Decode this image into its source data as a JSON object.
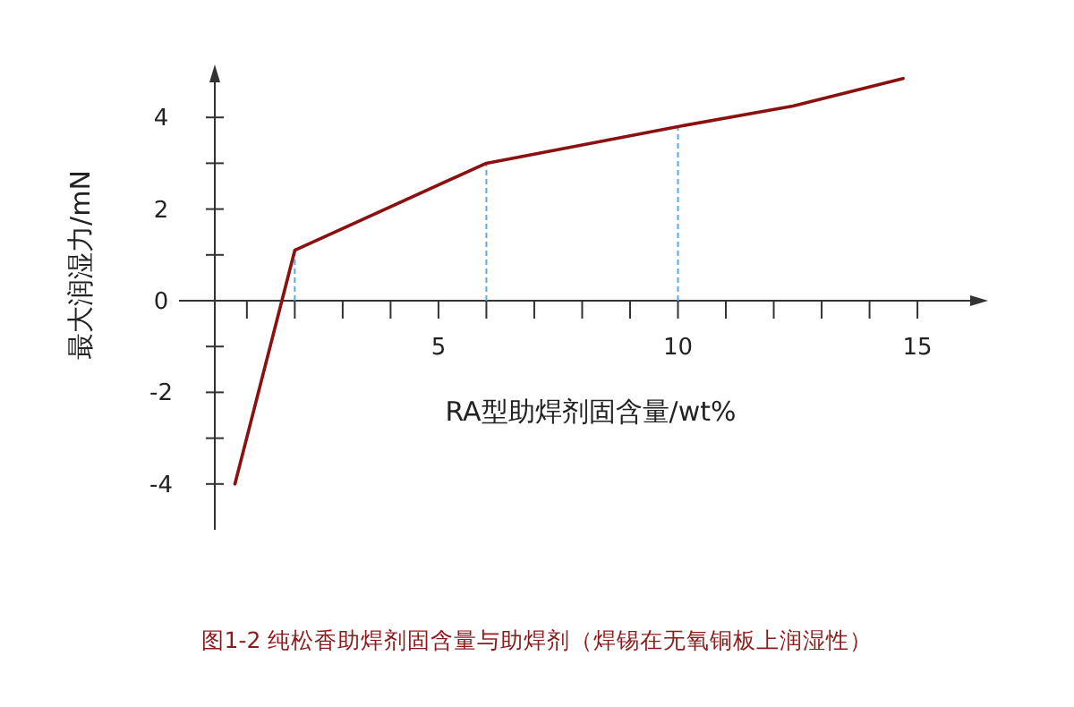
{
  "chart_data": {
    "type": "line",
    "title": "图1-2  纯松香助焊剂固含量与助焊剂（焊锡在无氧铜板上润湿性）",
    "xlabel": "RA型助焊剂固含量/wt%",
    "ylabel": "最大润湿力/mN",
    "x": [
      0.75,
      2,
      6,
      10,
      12.4,
      14.7
    ],
    "series": [
      {
        "color": "#8b1010",
        "values": [
          -4,
          1.1,
          3,
          3.8,
          4.25,
          4.85
        ]
      }
    ],
    "xlim": [
      0.33,
      16.4
    ],
    "ylim": [
      -5,
      5
    ],
    "xticks": [
      {
        "value": 1,
        "label": null
      },
      {
        "value": 2,
        "label": null
      },
      {
        "value": 3,
        "label": null
      },
      {
        "value": 4,
        "label": null
      },
      5,
      {
        "value": 6,
        "label": null
      },
      {
        "value": 7,
        "label": null
      },
      {
        "value": 8,
        "label": null
      },
      {
        "value": 9,
        "label": null
      },
      10,
      {
        "value": 11,
        "label": null
      },
      {
        "value": 12,
        "label": null
      },
      {
        "value": 13,
        "label": null
      },
      {
        "value": 14,
        "label": null
      },
      15
    ],
    "yticks": [
      -4,
      {
        "value": -3,
        "label": null
      },
      -2,
      {
        "value": -1,
        "label": null
      },
      0,
      {
        "value": 1,
        "label": null
      },
      2,
      {
        "value": 3,
        "label": null
      },
      4
    ],
    "ref_lines": [
      {
        "axis": "x",
        "value": 2,
        "color": "#5aa9e6",
        "line_style": "dashed"
      },
      {
        "axis": "x",
        "value": 6,
        "color": "#5aa9e6",
        "line_style": "dashed"
      },
      {
        "axis": "x",
        "value": 10,
        "color": "#5aa9e6",
        "line_style": "dashed"
      }
    ],
    "grid": false,
    "marker": "none",
    "line_style": "solid"
  }
}
